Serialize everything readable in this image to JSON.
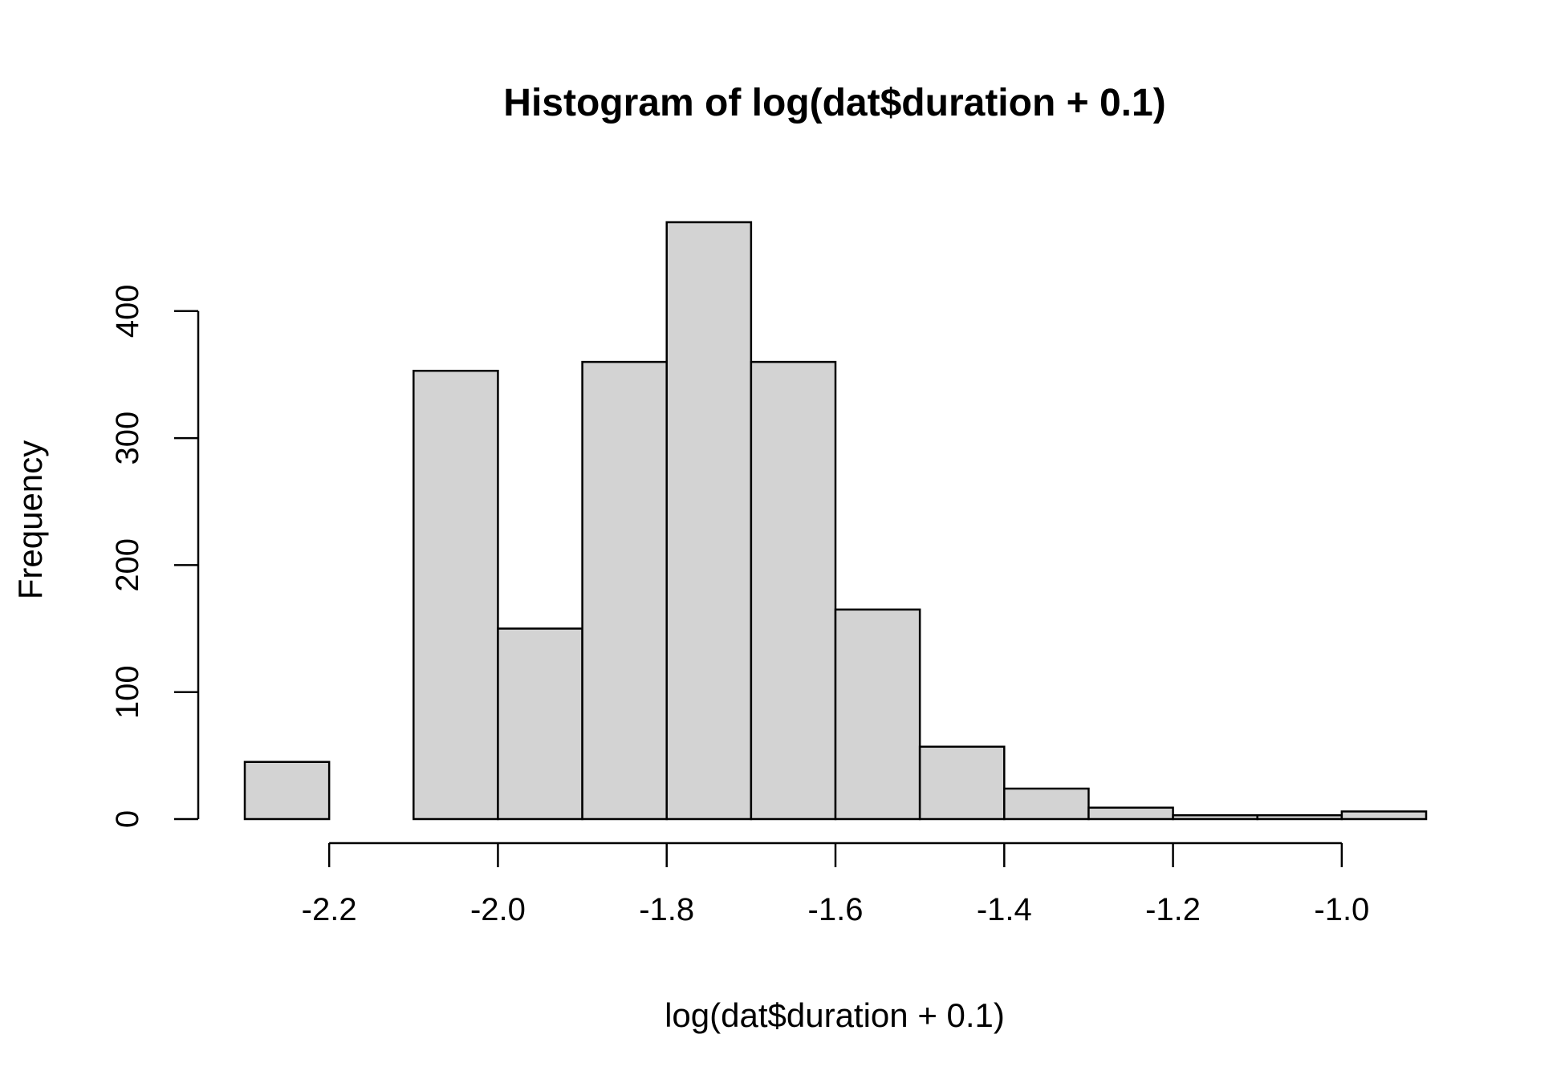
{
  "chart_data": {
    "type": "bar",
    "title": "Histogram of log(dat$duration + 0.1)",
    "xlabel": "log(dat$duration + 0.1)",
    "ylabel": "Frequency",
    "bar_fill": "#d3d3d3",
    "bin_edges": [
      -2.3,
      -2.2,
      -2.1,
      -2.0,
      -1.9,
      -1.8,
      -1.7,
      -1.6,
      -1.5,
      -1.4,
      -1.3,
      -1.2,
      -1.1,
      -1.0,
      -0.9
    ],
    "values": [
      45,
      0,
      353,
      150,
      360,
      470,
      360,
      165,
      57,
      24,
      9,
      3,
      3,
      6
    ],
    "xlim": [
      -2.3,
      -0.9
    ],
    "ylim": [
      0,
      470
    ],
    "xticks": [
      -2.2,
      -2.0,
      -1.8,
      -1.6,
      -1.4,
      -1.2,
      -1.0
    ],
    "xtick_labels": [
      "-2.2",
      "-2.0",
      "-1.8",
      "-1.6",
      "-1.4",
      "-1.2",
      "-1.0"
    ],
    "yticks": [
      0,
      100,
      200,
      300,
      400
    ],
    "ytick_labels": [
      "0",
      "100",
      "200",
      "300",
      "400"
    ],
    "grid": false,
    "legend": "none"
  }
}
